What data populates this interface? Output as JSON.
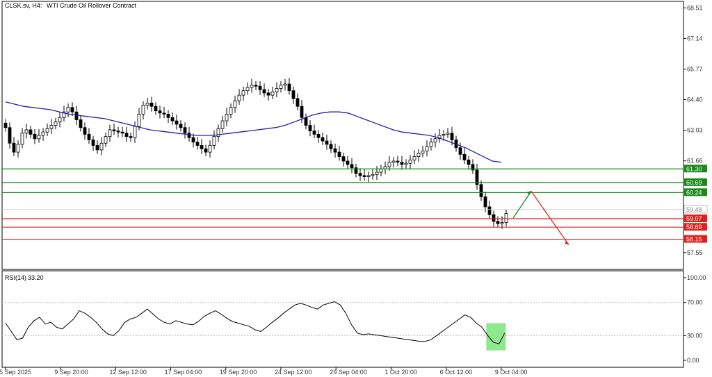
{
  "header": {
    "symbol": "CLSK.sv, H4:",
    "description": "WTI Crude Oil Rollover Contract"
  },
  "colors": {
    "bull": "#ffffff",
    "bear": "#000000",
    "ma": "#1f1fb0",
    "support": "#1a8a1a",
    "resistance": "#e02020",
    "rsi": "#000000",
    "highlight": "#8ee88e"
  },
  "chart_data": [
    {
      "type": "candlestick",
      "title": "",
      "price_axis": {
        "min": 56.8,
        "max": 68.8,
        "ticks": [
          "68.51",
          "67.14",
          "65.77",
          "64.40",
          "63.03",
          "61.66",
          "57.55"
        ]
      },
      "time_labels": [
        "5 Sep 2025",
        "9 Sep 20:00",
        "12 Sep 12:00",
        "17 Sep 04:00",
        "19 Sep 20:00",
        "24 Sep 12:00",
        "29 Sep 04:00",
        "1 Oct 20:00",
        "6 Oct 12:00",
        "9 Oct 04:00"
      ],
      "candle_count": 135,
      "close": [
        63.15,
        62.45,
        62.05,
        62.4,
        62.9,
        63.05,
        62.85,
        62.65,
        62.8,
        62.95,
        63.1,
        63.25,
        63.4,
        63.6,
        63.85,
        64.05,
        63.85,
        63.5,
        63.15,
        62.85,
        62.6,
        62.35,
        62.15,
        62.45,
        62.75,
        63.05,
        63.0,
        62.95,
        62.9,
        62.75,
        62.7,
        63.2,
        63.75,
        64.15,
        64.25,
        64.1,
        63.9,
        63.8,
        63.75,
        63.6,
        63.45,
        63.3,
        63.15,
        62.9,
        62.7,
        62.5,
        62.35,
        62.2,
        62.05,
        62.35,
        62.75,
        63.1,
        63.45,
        63.75,
        64.05,
        64.35,
        64.6,
        64.8,
        64.95,
        65.05,
        65.0,
        64.85,
        64.7,
        64.6,
        64.75,
        64.9,
        65.05,
        65.1,
        64.8,
        64.45,
        64.1,
        63.6,
        63.25,
        63.0,
        62.85,
        62.7,
        62.55,
        62.4,
        62.2,
        62.05,
        61.85,
        61.65,
        61.5,
        61.35,
        61.1,
        61.0,
        60.95,
        61.0,
        61.05,
        61.15,
        61.3,
        61.4,
        61.6,
        61.65,
        61.6,
        61.5,
        61.55,
        61.7,
        61.85,
        62.0,
        62.1,
        62.3,
        62.5,
        62.65,
        62.8,
        62.85,
        62.9,
        62.6,
        62.25,
        61.95,
        61.7,
        61.5,
        61.25,
        60.6,
        60.05,
        59.6,
        59.25,
        58.95,
        58.85,
        58.9,
        59.3
      ],
      "series": [
        {
          "name": "",
          "kind": "moving-average",
          "values": [
            64.3,
            64.2,
            64.1,
            64.05,
            64.0,
            63.95,
            63.85,
            63.75,
            63.7,
            63.65,
            63.6,
            63.55,
            63.45,
            63.35,
            63.25,
            63.15,
            63.05,
            63.0,
            62.95,
            62.9,
            62.85,
            62.8,
            62.8,
            62.8,
            62.85,
            62.9,
            62.95,
            63.0,
            63.05,
            63.1,
            63.15,
            63.25,
            63.4,
            63.55,
            63.7,
            63.8,
            63.85,
            63.85,
            63.8,
            63.65,
            63.5,
            63.35,
            63.2,
            63.05,
            62.95,
            62.9,
            62.85,
            62.8,
            62.7,
            62.55,
            62.4,
            62.25,
            62.05,
            61.85,
            61.65,
            61.6
          ]
        },
        {
          "name": "RSI(14)",
          "kind": "oscillator",
          "value_label": "33.20",
          "axis": [
            "100.00",
            "70.00",
            "30.00",
            "0.00"
          ],
          "values": [
            45,
            35,
            25,
            27,
            40,
            48,
            52,
            44,
            46,
            40,
            38,
            44,
            50,
            60,
            57,
            52,
            46,
            38,
            32,
            30,
            36,
            46,
            50,
            52,
            57,
            62,
            56,
            50,
            46,
            44,
            48,
            46,
            44,
            43,
            47,
            53,
            57,
            60,
            56,
            51,
            47,
            45,
            43,
            41,
            37,
            35,
            40,
            46,
            51,
            57,
            62,
            67,
            69,
            67,
            64,
            62,
            67,
            69,
            71,
            67,
            57,
            43,
            33,
            31,
            32,
            31,
            30,
            29,
            28,
            27,
            26,
            25,
            24,
            23,
            23,
            25,
            30,
            35,
            40,
            45,
            50,
            55,
            52,
            45,
            40,
            30,
            22,
            20,
            33
          ]
        }
      ],
      "levels": [
        {
          "label": "61.30",
          "value": 61.3,
          "kind": "support"
        },
        {
          "label": "60.69",
          "value": 60.69,
          "kind": "support"
        },
        {
          "label": "60.24",
          "value": 60.24,
          "kind": "support"
        },
        {
          "label": "59.48",
          "value": 59.48,
          "kind": "current"
        },
        {
          "label": "59.07",
          "value": 59.07,
          "kind": "resistance"
        },
        {
          "label": "58.69",
          "value": 58.69,
          "kind": "resistance"
        },
        {
          "label": "58.15",
          "value": 58.15,
          "kind": "resistance"
        }
      ],
      "projection": [
        {
          "from": 59.1,
          "to": 60.3,
          "direction": "up"
        },
        {
          "from": 60.3,
          "to": 57.9,
          "direction": "down"
        }
      ]
    }
  ]
}
